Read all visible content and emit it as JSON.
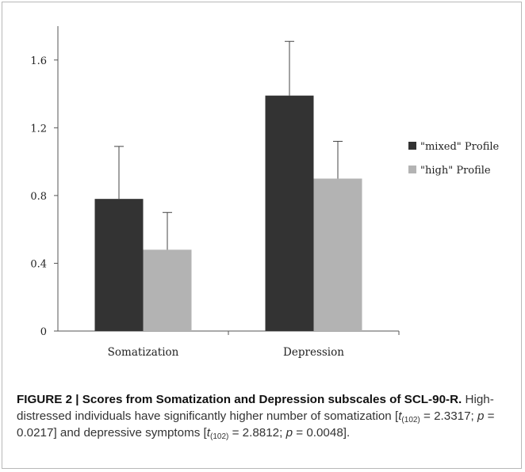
{
  "chart_data": {
    "type": "bar",
    "title": "",
    "xlabel": "",
    "ylabel": "",
    "categories": [
      "Somatization",
      "Depression"
    ],
    "series": [
      {
        "name": "\"mixed\" Profile",
        "color": "#333333",
        "values": [
          0.78,
          1.39
        ],
        "errors": [
          0.31,
          0.32
        ]
      },
      {
        "name": "\"high\" Profile",
        "color": "#b3b3b3",
        "values": [
          0.48,
          0.9
        ],
        "errors": [
          0.22,
          0.22
        ]
      }
    ],
    "ylim": [
      0,
      1.8
    ],
    "yticks": [
      0,
      0.4,
      0.8,
      1.2,
      1.6
    ],
    "ytick_labels": [
      "0",
      "0.4",
      "0.8",
      "1.2",
      "1.6"
    ],
    "grid": false,
    "legend": "right"
  },
  "caption": {
    "figure_label": "FIGURE 2 | Scores from Somatization and Depression subscales of SCL-90-R.",
    "text_part1": "High-distressed individuals have significantly higher number of somatization [",
    "stat1_t_sub": "(102)",
    "stat1_t_value": " = 2.3317; ",
    "stat1_p_value": " = 0.0217] and depressive symptoms [",
    "stat2_t_sub": "(102)",
    "stat2_t_value": " = 2.8812; ",
    "stat2_p_value": " = 0.0048].",
    "t_symbol": "t",
    "p_symbol": "p"
  }
}
